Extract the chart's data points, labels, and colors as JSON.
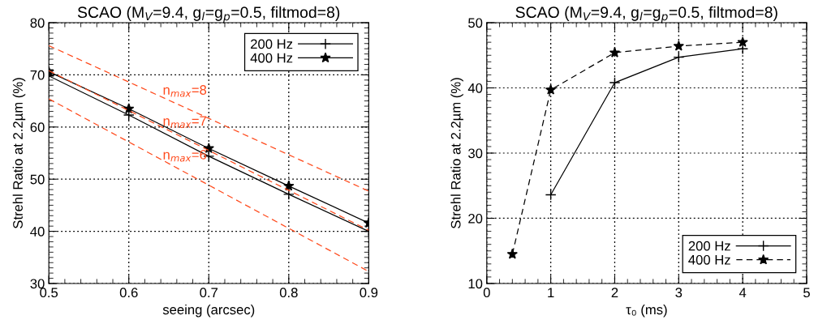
{
  "chart_data": [
    {
      "type": "line",
      "title": "SCAO (M$_{V}$=9.4, g$_{l}$=g$_{p}$=0.5, filtmod=8)",
      "xlabel": "seeing (arcsec)",
      "ylabel": "Strehl Ratio at 2.2µm (%)",
      "x": [
        0.5,
        0.6,
        0.7,
        0.8,
        0.9
      ],
      "series": [
        {
          "name": "200 Hz",
          "color": "#000000",
          "marker": "cross",
          "line_style": "solid",
          "values": [
            69.8,
            62.3,
            54.4,
            47.1,
            40.0
          ]
        },
        {
          "name": "400 Hz",
          "color": "#000000",
          "marker": "star",
          "line_style": "solid",
          "values": [
            70.6,
            63.5,
            55.9,
            48.7,
            41.6
          ]
        },
        {
          "name": "n$_{max}$=8",
          "color": "#ff4a1c",
          "marker": "none",
          "line_style": "dashed",
          "x": [
            0.5,
            0.9
          ],
          "values": [
            75.6,
            47.7
          ]
        },
        {
          "name": "n$_{max}$=7",
          "color": "#ff4a1c",
          "marker": "none",
          "line_style": "dashed",
          "x": [
            0.5,
            0.9
          ],
          "values": [
            70.8,
            40.2
          ]
        },
        {
          "name": "n$_{max}$=6",
          "color": "#ff4a1c",
          "marker": "none",
          "line_style": "dashed",
          "x": [
            0.5,
            0.9
          ],
          "values": [
            65.4,
            32.3
          ]
        }
      ],
      "xlim": [
        0.5,
        0.9
      ],
      "xticks": [
        0.5,
        0.6,
        0.7,
        0.8,
        0.9
      ],
      "ylim": [
        30,
        80
      ],
      "yticks": [
        30,
        40,
        50,
        60,
        70,
        80
      ],
      "grid": true,
      "legend": "top right"
    },
    {
      "type": "line",
      "title": "SCAO (M$_{V}$=9.4, g$_{l}$=g$_{p}$=0.5, filtmod=8)",
      "xlabel": "τ₀ (ms)",
      "ylabel": "Strehl Ratio at 2.2µm (%)",
      "series": [
        {
          "name": "200 Hz",
          "color": "#000000",
          "marker": "cross",
          "line_style": "solid",
          "x": [
            1,
            2,
            3,
            4
          ],
          "values": [
            23.6,
            40.8,
            44.7,
            46.0
          ]
        },
        {
          "name": "400 Hz",
          "color": "#000000",
          "marker": "star",
          "line_style": "dashed",
          "x": [
            0.4,
            1,
            2,
            3,
            4
          ],
          "values": [
            14.5,
            39.7,
            45.4,
            46.4,
            47.0
          ]
        }
      ],
      "xlim": [
        0,
        5
      ],
      "xticks": [
        0,
        1,
        2,
        3,
        4,
        5
      ],
      "ylim": [
        10,
        50
      ],
      "yticks": [
        10,
        20,
        30,
        40,
        50
      ],
      "grid": true,
      "legend": "bottom right"
    }
  ]
}
